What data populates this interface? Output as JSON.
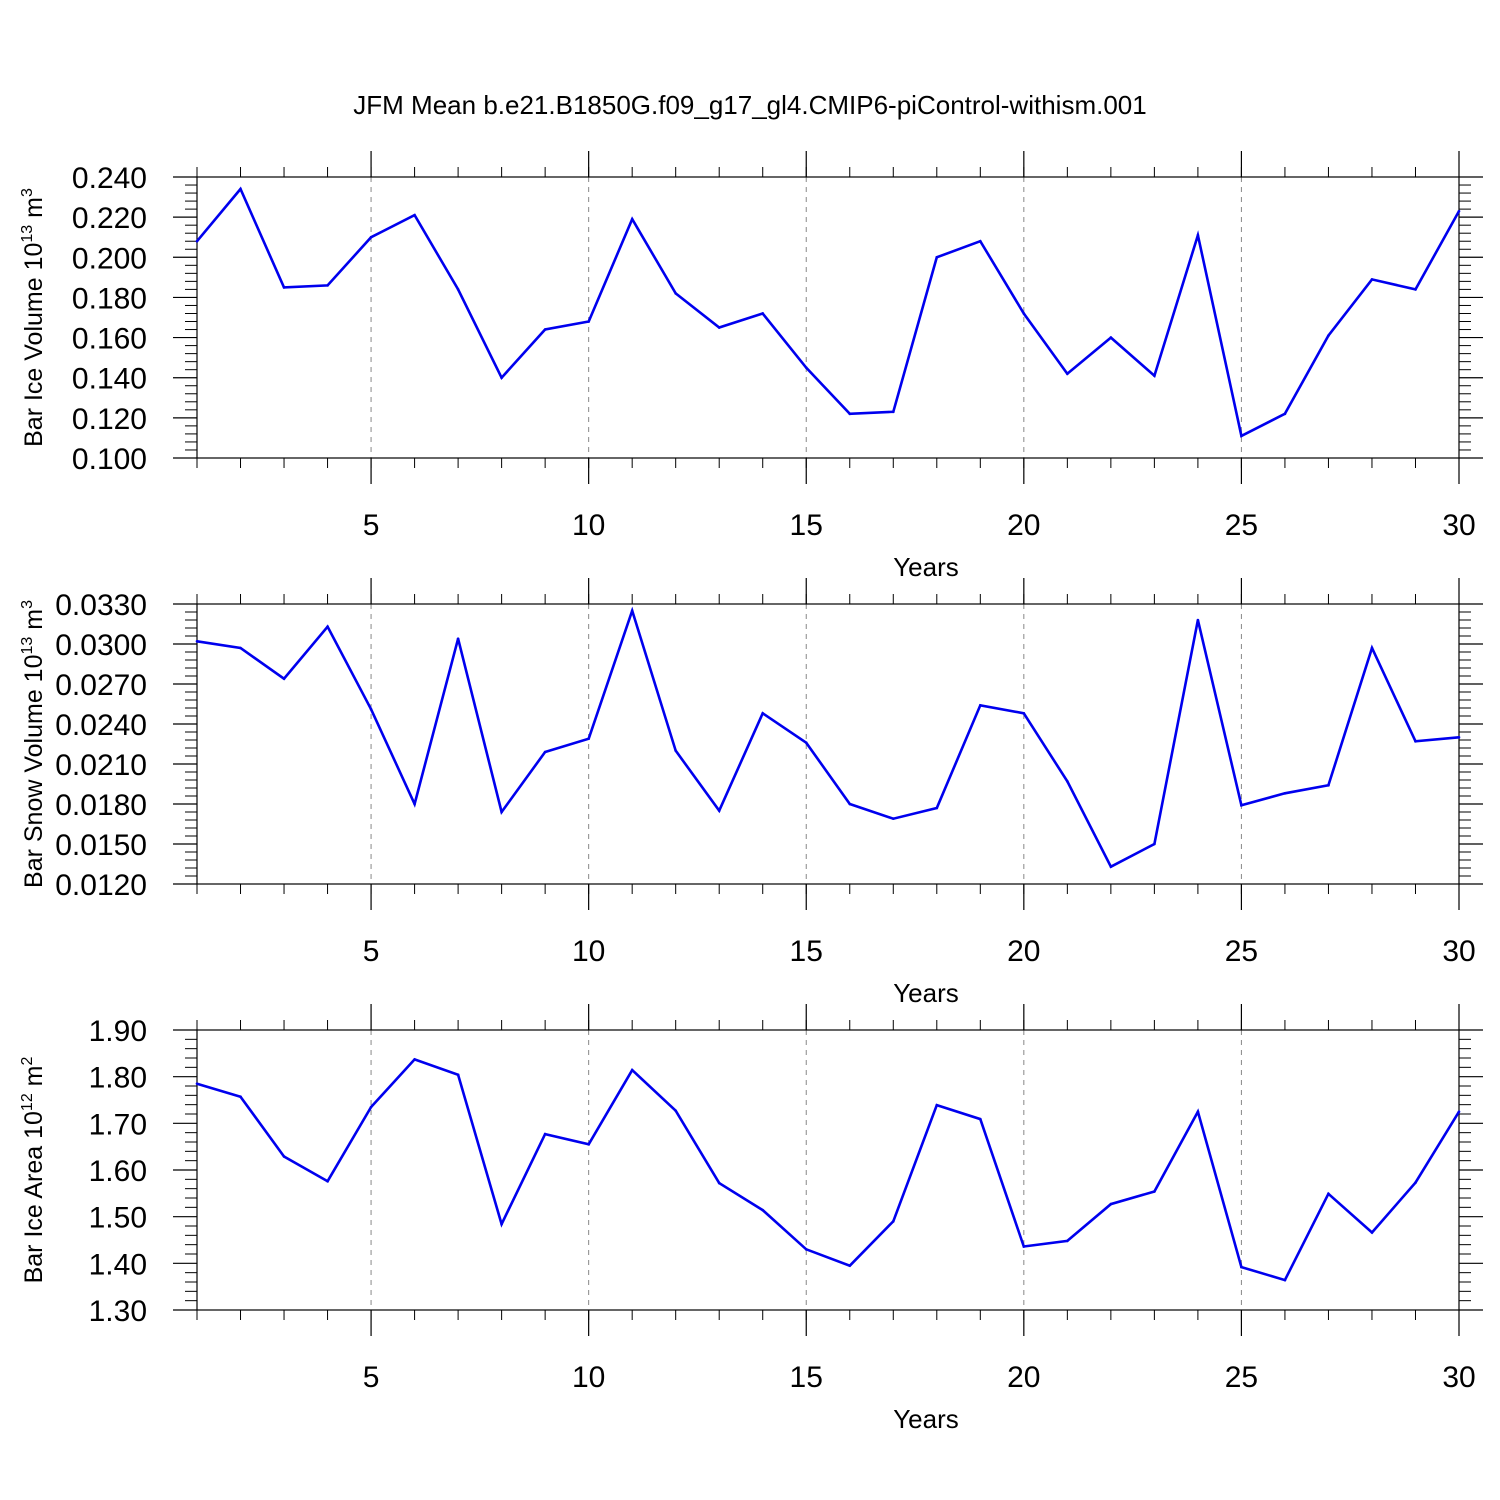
{
  "figure_title": "JFM Mean b.e21.B1850G.f09_g17_gl4.CMIP6-piControl-withism.001",
  "colors": {
    "line": "#0000ee",
    "axis": "#000000",
    "grid": "#888888",
    "background": "#ffffff"
  },
  "chart_data": [
    {
      "type": "line",
      "panel": "top",
      "title": "JFM Mean b.e21.B1850G.f09_g17_gl4.CMIP6-piControl-withism.001",
      "xlabel": "Years",
      "ylabel_text": "Bar Ice Volume 10",
      "ylabel_exp": "13",
      "ylabel_unit": " m",
      "ylabel_unit_exp": "3",
      "xlim": [
        1,
        30
      ],
      "ylim": [
        0.1,
        0.24
      ],
      "yticks": [
        "0.100",
        "0.120",
        "0.140",
        "0.160",
        "0.180",
        "0.200",
        "0.220",
        "0.240"
      ],
      "xticks": [
        "5",
        "10",
        "15",
        "20",
        "25",
        "30"
      ],
      "grid": "dashed vertical at major x ticks",
      "series": [
        {
          "name": "Bar Ice Volume",
          "x": [
            1,
            2,
            3,
            4,
            5,
            6,
            7,
            8,
            9,
            10,
            11,
            12,
            13,
            14,
            15,
            16,
            17,
            18,
            19,
            20,
            21,
            22,
            23,
            24,
            25,
            26,
            27,
            28,
            29,
            30
          ],
          "values": [
            0.208,
            0.234,
            0.185,
            0.186,
            0.21,
            0.221,
            0.184,
            0.14,
            0.164,
            0.168,
            0.219,
            0.182,
            0.165,
            0.172,
            0.145,
            0.122,
            0.123,
            0.2,
            0.208,
            0.172,
            0.142,
            0.16,
            0.141,
            0.211,
            0.111,
            0.122,
            0.161,
            0.189,
            0.184,
            0.223
          ]
        }
      ]
    },
    {
      "type": "line",
      "panel": "middle",
      "xlabel": "Years",
      "ylabel_text": "Bar Snow Volume 10",
      "ylabel_exp": "13",
      "ylabel_unit": " m",
      "ylabel_unit_exp": "3",
      "xlim": [
        1,
        30
      ],
      "ylim": [
        0.012,
        0.033
      ],
      "yticks": [
        "0.0120",
        "0.0150",
        "0.0180",
        "0.0210",
        "0.0240",
        "0.0270",
        "0.0300",
        "0.0330"
      ],
      "xticks": [
        "5",
        "10",
        "15",
        "20",
        "25",
        "30"
      ],
      "grid": "dashed vertical at major x ticks",
      "series": [
        {
          "name": "Bar Snow Volume",
          "x": [
            1,
            2,
            3,
            4,
            5,
            6,
            7,
            8,
            9,
            10,
            11,
            12,
            13,
            14,
            15,
            16,
            17,
            18,
            19,
            20,
            21,
            22,
            23,
            24,
            25,
            26,
            27,
            28,
            29,
            30
          ],
          "values": [
            0.0302,
            0.0297,
            0.0274,
            0.0313,
            0.0251,
            0.018,
            0.0304,
            0.0174,
            0.0219,
            0.0229,
            0.0325,
            0.022,
            0.0175,
            0.0248,
            0.0226,
            0.018,
            0.0169,
            0.0177,
            0.0254,
            0.0248,
            0.0197,
            0.0133,
            0.015,
            0.0318,
            0.0179,
            0.0188,
            0.0194,
            0.0297,
            0.0227,
            0.023
          ]
        }
      ]
    },
    {
      "type": "line",
      "panel": "bottom",
      "xlabel": "Years",
      "ylabel_text": "Bar Ice Area 10",
      "ylabel_exp": "12",
      "ylabel_unit": " m",
      "ylabel_unit_exp": "2",
      "xlim": [
        1,
        30
      ],
      "ylim": [
        1.3,
        1.9
      ],
      "yticks": [
        "1.30",
        "1.40",
        "1.50",
        "1.60",
        "1.70",
        "1.80",
        "1.90"
      ],
      "xticks": [
        "5",
        "10",
        "15",
        "20",
        "25",
        "30"
      ],
      "grid": "dashed vertical at major x ticks",
      "series": [
        {
          "name": "Bar Ice Area",
          "x": [
            1,
            2,
            3,
            4,
            5,
            6,
            7,
            8,
            9,
            10,
            11,
            12,
            13,
            14,
            15,
            16,
            17,
            18,
            19,
            20,
            21,
            22,
            23,
            24,
            25,
            26,
            27,
            28,
            29,
            30
          ],
          "values": [
            1.785,
            1.757,
            1.629,
            1.576,
            1.735,
            1.837,
            1.804,
            1.484,
            1.677,
            1.655,
            1.814,
            1.727,
            1.572,
            1.514,
            1.43,
            1.395,
            1.49,
            1.739,
            1.709,
            1.436,
            1.448,
            1.527,
            1.554,
            1.725,
            1.392,
            1.364,
            1.549,
            1.466,
            1.573,
            1.725
          ]
        }
      ]
    }
  ]
}
